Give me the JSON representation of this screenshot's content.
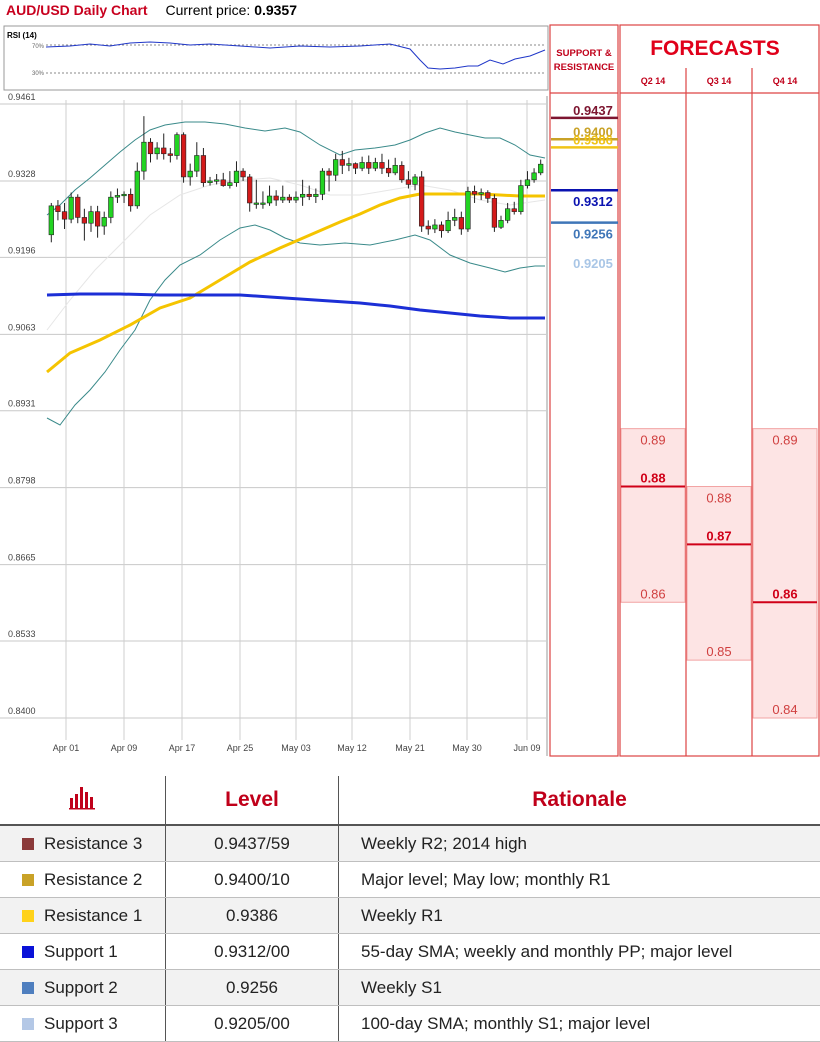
{
  "header": {
    "title": "AUD/USD Daily Chart",
    "price_label": "Current price:",
    "price_value": "0.9357"
  },
  "rsi": {
    "label": "RSI (14)",
    "upper_label": "70%",
    "lower_label": "30%",
    "line_color": "#1f36c8"
  },
  "chart_data": [
    {
      "type": "candlestick",
      "title": "AUD/USD Daily Chart",
      "ylim": [
        0.84,
        0.9461
      ],
      "y_ticks": [
        "0.9461",
        "0.9328",
        "0.9196",
        "0.9063",
        "0.8931",
        "0.8798",
        "0.8665",
        "0.8533",
        "0.8400"
      ],
      "x_ticks": [
        "Apr 01",
        "Apr 09",
        "Apr 17",
        "Apr 25",
        "May 03",
        "May 12",
        "May 21",
        "May 30",
        "Jun 09"
      ],
      "candles": [
        [
          0.9235,
          0.9285,
          0.9222,
          0.929
        ],
        [
          0.9285,
          0.9275,
          0.926,
          0.9295
        ],
        [
          0.9275,
          0.9262,
          0.9245,
          0.929
        ],
        [
          0.9262,
          0.93,
          0.9255,
          0.9308
        ],
        [
          0.93,
          0.9265,
          0.9255,
          0.9305
        ],
        [
          0.9265,
          0.9255,
          0.9225,
          0.928
        ],
        [
          0.9255,
          0.9275,
          0.924,
          0.9285
        ],
        [
          0.9275,
          0.925,
          0.923,
          0.9285
        ],
        [
          0.925,
          0.9265,
          0.9235,
          0.9275
        ],
        [
          0.9265,
          0.93,
          0.9255,
          0.931
        ],
        [
          0.93,
          0.9303,
          0.929,
          0.9315
        ],
        [
          0.9303,
          0.9305,
          0.929,
          0.931
        ],
        [
          0.9305,
          0.9285,
          0.9275,
          0.9315
        ],
        [
          0.9285,
          0.9345,
          0.928,
          0.936
        ],
        [
          0.9345,
          0.9395,
          0.933,
          0.944
        ],
        [
          0.9395,
          0.9375,
          0.936,
          0.9402
        ],
        [
          0.9375,
          0.9385,
          0.9365,
          0.9395
        ],
        [
          0.9385,
          0.9375,
          0.9365,
          0.941
        ],
        [
          0.9375,
          0.9372,
          0.936,
          0.9385
        ],
        [
          0.9372,
          0.9408,
          0.9365,
          0.9412
        ],
        [
          0.9408,
          0.9335,
          0.9325,
          0.9412
        ],
        [
          0.9335,
          0.9345,
          0.932,
          0.9358
        ],
        [
          0.9345,
          0.9372,
          0.9335,
          0.9395
        ],
        [
          0.9372,
          0.9325,
          0.9318,
          0.9385
        ],
        [
          0.9325,
          0.9328,
          0.932,
          0.9335
        ],
        [
          0.9328,
          0.933,
          0.9322,
          0.934
        ],
        [
          0.933,
          0.932,
          0.9318,
          0.9342
        ],
        [
          0.932,
          0.9325,
          0.9315,
          0.9345
        ],
        [
          0.9325,
          0.9345,
          0.9318,
          0.9362
        ],
        [
          0.9345,
          0.9335,
          0.9328,
          0.935
        ],
        [
          0.9335,
          0.929,
          0.9275,
          0.934
        ],
        [
          0.929,
          0.929,
          0.928,
          0.933
        ],
        [
          0.929,
          0.929,
          0.928,
          0.931
        ],
        [
          0.929,
          0.9302,
          0.9285,
          0.932
        ],
        [
          0.9302,
          0.9295,
          0.9285,
          0.9312
        ],
        [
          0.9295,
          0.93,
          0.929,
          0.932
        ],
        [
          0.93,
          0.9295,
          0.929,
          0.9305
        ],
        [
          0.9295,
          0.93,
          0.929,
          0.931
        ],
        [
          0.93,
          0.9305,
          0.9285,
          0.933
        ],
        [
          0.9305,
          0.9301,
          0.9295,
          0.932
        ],
        [
          0.9301,
          0.9305,
          0.929,
          0.9315
        ],
        [
          0.9305,
          0.9345,
          0.9295,
          0.935
        ],
        [
          0.9345,
          0.9338,
          0.931,
          0.935
        ],
        [
          0.9338,
          0.9365,
          0.9328,
          0.9375
        ],
        [
          0.9365,
          0.9355,
          0.934,
          0.938
        ],
        [
          0.9355,
          0.9358,
          0.9345,
          0.9368
        ],
        [
          0.9358,
          0.935,
          0.934,
          0.936
        ],
        [
          0.935,
          0.936,
          0.9345,
          0.937
        ],
        [
          0.936,
          0.935,
          0.934,
          0.9372
        ],
        [
          0.935,
          0.936,
          0.9345,
          0.9368
        ],
        [
          0.936,
          0.935,
          0.934,
          0.9375
        ],
        [
          0.935,
          0.9342,
          0.9335,
          0.9365
        ],
        [
          0.9342,
          0.9355,
          0.9338,
          0.9368
        ],
        [
          0.9355,
          0.933,
          0.9325,
          0.9362
        ],
        [
          0.933,
          0.9322,
          0.9315,
          0.9345
        ],
        [
          0.9322,
          0.9335,
          0.9312,
          0.934
        ],
        [
          0.9335,
          0.925,
          0.924,
          0.9345
        ],
        [
          0.925,
          0.9245,
          0.9235,
          0.926
        ],
        [
          0.9245,
          0.9252,
          0.9238,
          0.9262
        ],
        [
          0.9252,
          0.9242,
          0.923,
          0.9258
        ],
        [
          0.9242,
          0.926,
          0.9238,
          0.9275
        ],
        [
          0.926,
          0.9265,
          0.925,
          0.928
        ],
        [
          0.9265,
          0.9245,
          0.9235,
          0.9275
        ],
        [
          0.9245,
          0.931,
          0.924,
          0.9318
        ],
        [
          0.931,
          0.9305,
          0.929,
          0.932
        ],
        [
          0.9305,
          0.9308,
          0.9295,
          0.9315
        ],
        [
          0.9308,
          0.9298,
          0.929,
          0.9312
        ],
        [
          0.9298,
          0.9248,
          0.924,
          0.9305
        ],
        [
          0.9248,
          0.926,
          0.9245,
          0.9268
        ],
        [
          0.926,
          0.928,
          0.9255,
          0.929
        ],
        [
          0.928,
          0.9275,
          0.927,
          0.9292
        ],
        [
          0.9275,
          0.932,
          0.927,
          0.933
        ],
        [
          0.932,
          0.933,
          0.9315,
          0.9345
        ],
        [
          0.933,
          0.9342,
          0.9325,
          0.935
        ],
        [
          0.9342,
          0.9357,
          0.9338,
          0.9365
        ]
      ],
      "levels": [
        {
          "name": "Resistance 3",
          "value": 0.9437,
          "label": "0.9437",
          "color": "#7d1530"
        },
        {
          "name": "Resistance 2",
          "value": 0.94,
          "label": "0.9400",
          "color": "#c9a227"
        },
        {
          "name": "Resistance 1",
          "value": 0.9386,
          "label": "0.9386",
          "color": "#f0c418"
        },
        {
          "name": "Support 1",
          "value": 0.9312,
          "label": "0.9312",
          "color": "#0a12b0"
        },
        {
          "name": "Support 2",
          "value": 0.9256,
          "label": "0.9256",
          "color": "#3f76b8"
        },
        {
          "name": "Support 3",
          "value": 0.9205,
          "label": "0.9205",
          "color": "#a9c6e6"
        }
      ]
    },
    {
      "type": "forecast-bars",
      "title": "FORECASTS",
      "quarters": [
        {
          "label": "Q2 14",
          "high": 0.89,
          "mid": 0.88,
          "low": 0.86,
          "high_label": "0.89",
          "mid_label": "0.88",
          "low_label": "0.86"
        },
        {
          "label": "Q3 14",
          "high": 0.88,
          "mid": 0.87,
          "low": 0.85,
          "high_label": "0.88",
          "mid_label": "0.87",
          "low_label": "0.85"
        },
        {
          "label": "Q4 14",
          "high": 0.89,
          "mid": 0.86,
          "low": 0.84,
          "high_label": "0.89",
          "mid_label": "0.86",
          "low_label": "0.84"
        }
      ]
    }
  ],
  "sr_panel": {
    "title_line1": "SUPPORT &",
    "title_line2": "RESISTANCE"
  },
  "table": {
    "headers": [
      "",
      "Level",
      "Rationale"
    ],
    "rows": [
      {
        "name": "Resistance 3",
        "level": "0.9437/59",
        "rationale": "Weekly R2; 2014 high",
        "color": "#8b3a3a"
      },
      {
        "name": "Resistance 2",
        "level": "0.9400/10",
        "rationale": "Major level; May low; monthly R1",
        "color": "#c9a227"
      },
      {
        "name": "Resistance 1",
        "level": "0.9386",
        "rationale": "Weekly R1",
        "color": "#ffd21a"
      },
      {
        "name": "Support 1",
        "level": "0.9312/00",
        "rationale": "55-day SMA; weekly and monthly PP; major level",
        "color": "#0a12d8"
      },
      {
        "name": "Support 2",
        "level": "0.9256",
        "rationale": "Weekly S1",
        "color": "#4f7fbf"
      },
      {
        "name": "Support 3",
        "level": "0.9205/00",
        "rationale": "100-day SMA; monthly S1; major level",
        "color": "#b4c8e6"
      }
    ]
  }
}
